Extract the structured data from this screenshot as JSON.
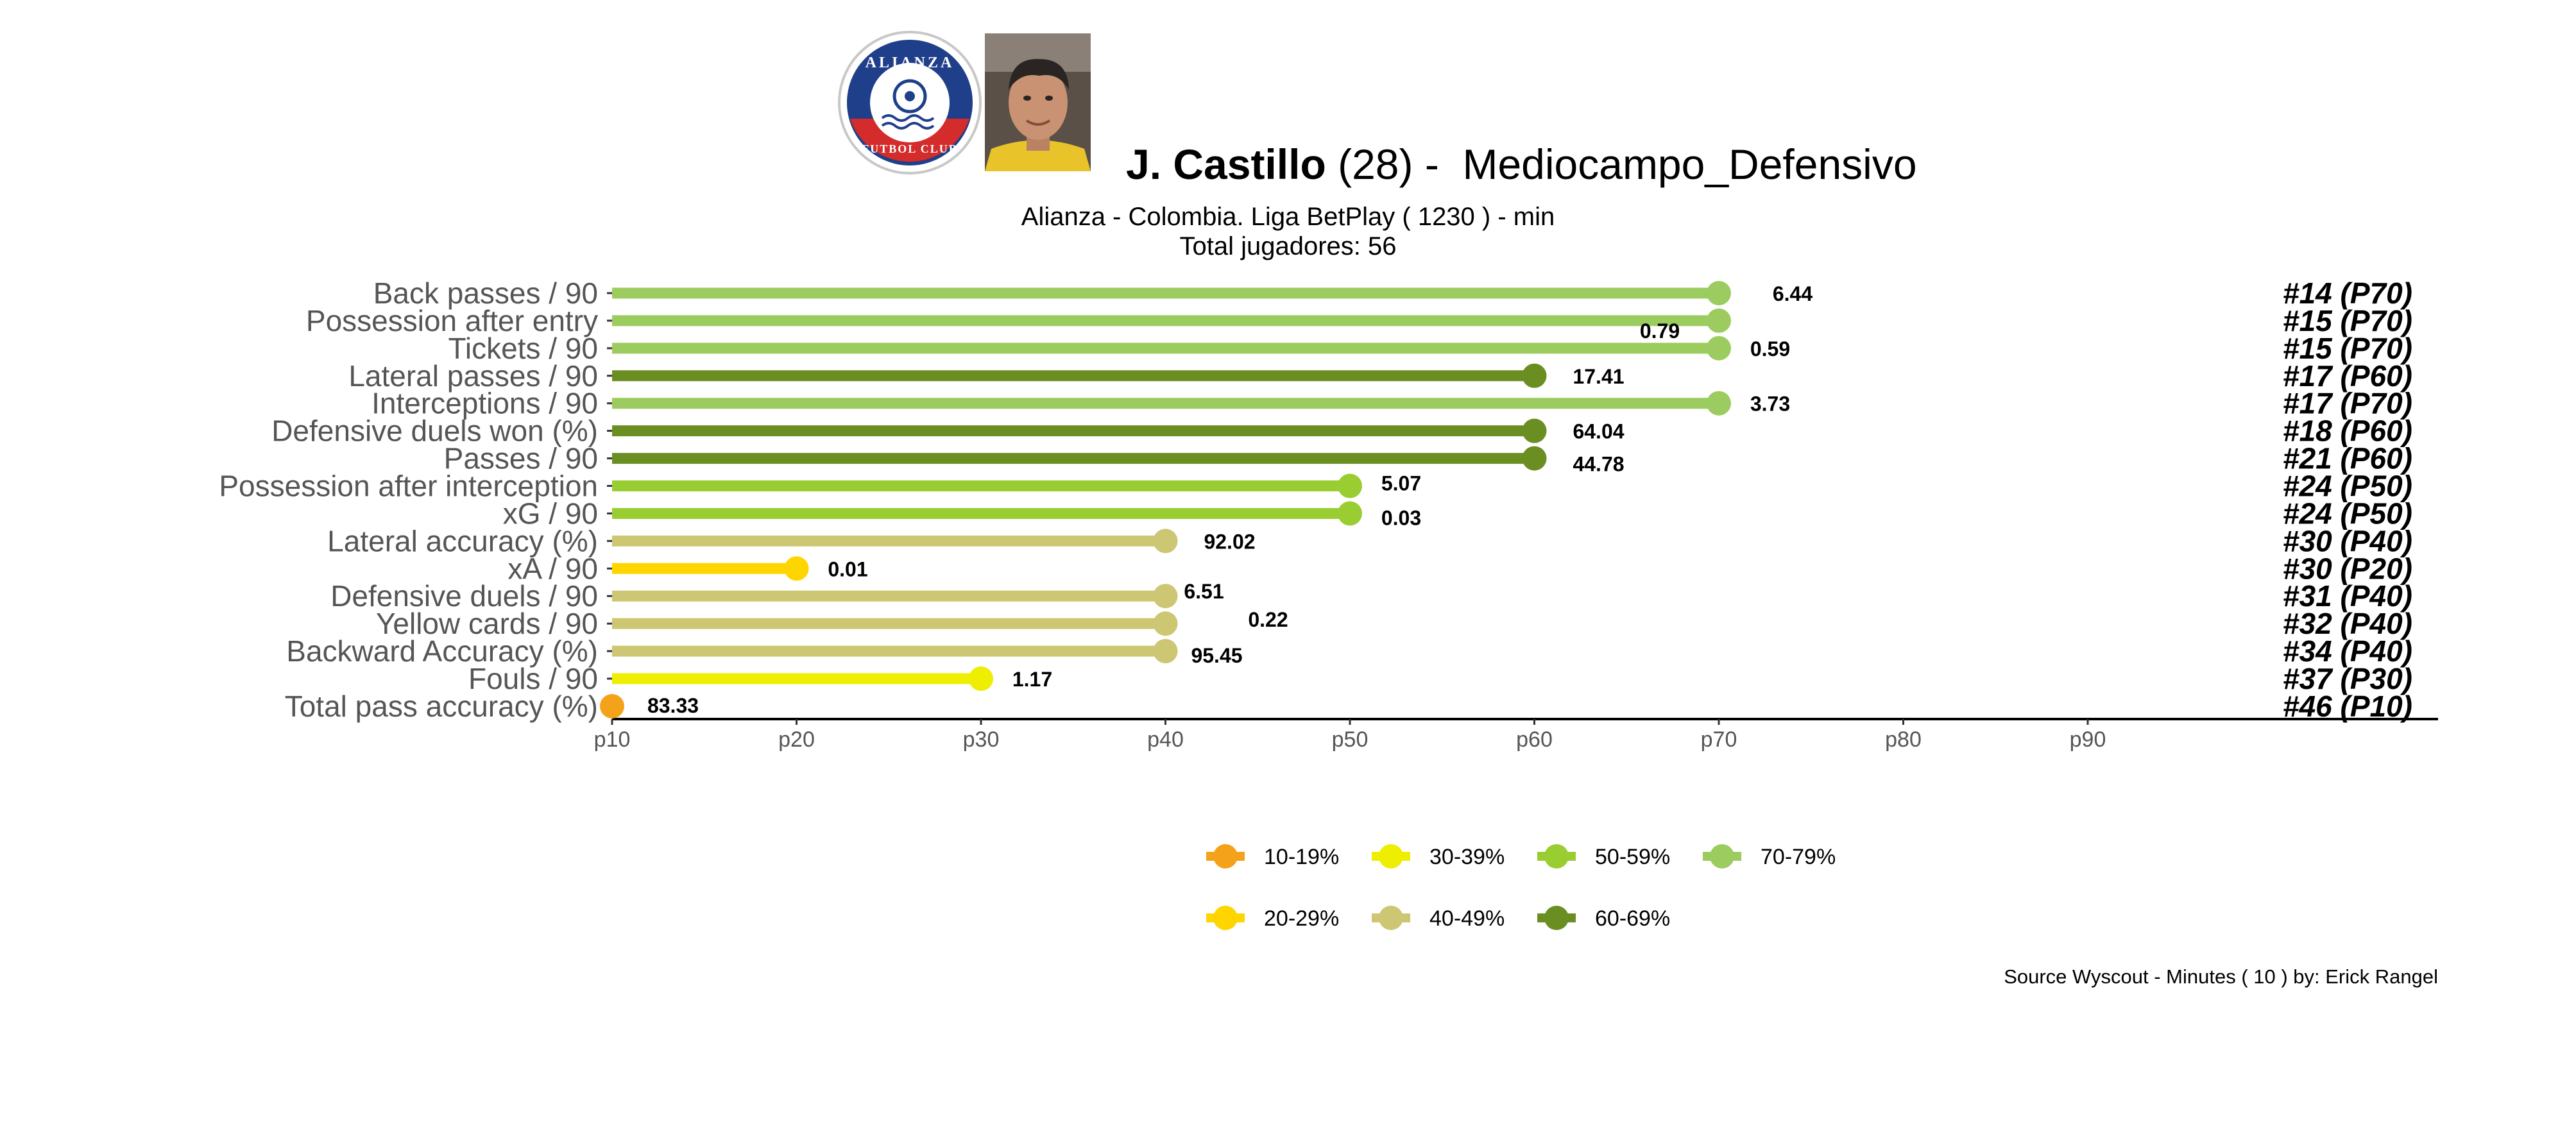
{
  "header": {
    "player_name": "J. Castillo",
    "age_text": "(28) -",
    "position": "Mediocampo_Defensivo",
    "subtitle_line1": "Alianza  -  Colombia. Liga BetPlay  ( 1230 ) - min",
    "subtitle_line2": "Total jugadores:  56",
    "club_logo": {
      "ring_top_text": "ALIANZA",
      "ring_bottom_text": "FUTBOL CLUB",
      "colors": {
        "navy": "#1f3f8a",
        "red": "#d42b2b",
        "white": "#ffffff"
      }
    },
    "player_photo": {
      "colors": {
        "skin": "#c99272",
        "hair": "#2a2522",
        "shirt": "#e8c42a",
        "background": "#5a5048"
      }
    }
  },
  "chart_data": {
    "type": "lollipop",
    "x_ticks": [
      "p10",
      "p20",
      "p30",
      "p40",
      "p50",
      "p60",
      "p70",
      "p80",
      "p90"
    ],
    "xlim": [
      10,
      100
    ],
    "grid": false,
    "metrics": [
      {
        "label": "Back passes / 90",
        "percentile": 70,
        "value": "6.44",
        "rank": "#14 (P70)",
        "band": "70-79%"
      },
      {
        "label": "Possession after entry",
        "percentile": 70,
        "value": "0.79",
        "rank": "#15 (P70)",
        "band": "70-79%"
      },
      {
        "label": "Tickets / 90",
        "percentile": 70,
        "value": "0.59",
        "rank": "#15 (P70)",
        "band": "70-79%"
      },
      {
        "label": "Lateral passes / 90",
        "percentile": 60,
        "value": "17.41",
        "rank": "#17 (P60)",
        "band": "60-69%"
      },
      {
        "label": "Interceptions / 90",
        "percentile": 70,
        "value": "3.73",
        "rank": "#17 (P70)",
        "band": "70-79%"
      },
      {
        "label": "Defensive duels won (%)",
        "percentile": 60,
        "value": "64.04",
        "rank": "#18 (P60)",
        "band": "60-69%"
      },
      {
        "label": "Passes / 90",
        "percentile": 60,
        "value": "44.78",
        "rank": "#21 (P60)",
        "band": "60-69%"
      },
      {
        "label": "Possession after interception",
        "percentile": 50,
        "value": "5.07",
        "rank": "#24 (P50)",
        "band": "50-59%"
      },
      {
        "label": "xG / 90",
        "percentile": 50,
        "value": "0.03",
        "rank": "#24 (P50)",
        "band": "50-59%"
      },
      {
        "label": "Lateral accuracy (%)",
        "percentile": 40,
        "value": "92.02",
        "rank": "#30 (P40)",
        "band": "40-49%"
      },
      {
        "label": "xA / 90",
        "percentile": 20,
        "value": "0.01",
        "rank": "#30 (P20)",
        "band": "20-29%"
      },
      {
        "label": "Defensive duels / 90",
        "percentile": 40,
        "value": "6.51",
        "rank": "#31 (P40)",
        "band": "40-49%"
      },
      {
        "label": "Yellow cards / 90",
        "percentile": 40,
        "value": "0.22",
        "rank": "#32 (P40)",
        "band": "40-49%"
      },
      {
        "label": "Backward Accuracy (%)",
        "percentile": 40,
        "value": "95.45",
        "rank": "#34 (P40)",
        "band": "40-49%"
      },
      {
        "label": "Fouls / 90",
        "percentile": 30,
        "value": "1.17",
        "rank": "#37 (P30)",
        "band": "30-39%"
      },
      {
        "label": "Total pass accuracy (%)",
        "percentile": 10,
        "value": "83.33",
        "rank": "#46 (P10)",
        "band": "10-19%"
      }
    ],
    "legend": [
      {
        "label": "10-19%",
        "color": "#f5a21b"
      },
      {
        "label": "30-39%",
        "color": "#eeee00"
      },
      {
        "label": "50-59%",
        "color": "#9acd32"
      },
      {
        "label": "70-79%",
        "color": "#9ccc5f"
      },
      {
        "label": "20-29%",
        "color": "#ffd500"
      },
      {
        "label": "40-49%",
        "color": "#cdc673"
      },
      {
        "label": "60-69%",
        "color": "#6b8e23"
      }
    ],
    "legend_placement": "bottom"
  },
  "footer": {
    "source": "Source Wyscout - Minutes ( 10 ) by: Erick Rangel"
  }
}
